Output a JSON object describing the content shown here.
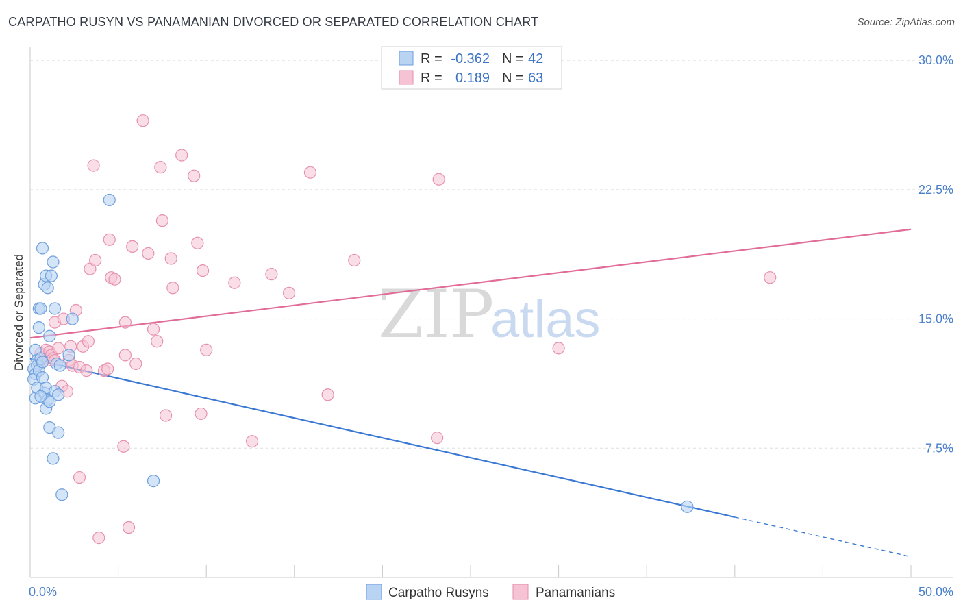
{
  "title": "CARPATHO RUSYN VS PANAMANIAN DIVORCED OR SEPARATED CORRELATION CHART",
  "source": "Source: ZipAtlas.com",
  "watermark": {
    "zip": "ZIP",
    "atlas": "atlas"
  },
  "colors": {
    "blue": "#3a78d4",
    "blue_fill": "#b9d3f3",
    "pink": "#e06c97",
    "pink_fill": "#f6c3d4",
    "tick_text": "#4a7fc9",
    "grid": "#dddddd"
  },
  "legend": {
    "rows": [
      {
        "r_label": "R =",
        "r_value": "-0.362",
        "n_label": "N =",
        "n_value": "42"
      },
      {
        "r_label": "R =",
        "r_value": "0.189",
        "n_label": "N =",
        "n_value": "63"
      }
    ]
  },
  "bottom_legend": [
    "Carpatho Rusyns",
    "Panamanians"
  ],
  "chart_data": {
    "type": "scatter",
    "title": "CARPATHO RUSYN VS PANAMANIAN DIVORCED OR SEPARATED CORRELATION CHART",
    "xlabel": "",
    "ylabel": "Divorced or Separated",
    "xlim": [
      0,
      50
    ],
    "ylim": [
      0,
      30.8
    ],
    "x_tick_labels": [
      "0.0%",
      "50.0%"
    ],
    "y_ticks": [
      7.5,
      15.0,
      22.5,
      30.0
    ],
    "y_tick_labels": [
      "7.5%",
      "15.0%",
      "22.5%",
      "30.0%"
    ],
    "grid": true,
    "legend_position": "top-center",
    "series": [
      {
        "name": "Carpatho Rusyns",
        "color": "#3a78d4",
        "r": -0.362,
        "n": 42,
        "trend": {
          "x_solid": [
            0,
            40
          ],
          "y_solid": [
            12.7,
            3.5
          ],
          "x_dashed": [
            40,
            50
          ],
          "y_dashed": [
            3.5,
            1.2
          ]
        },
        "points": [
          [
            0.2,
            12.1
          ],
          [
            0.3,
            11.8
          ],
          [
            0.2,
            11.5
          ],
          [
            0.3,
            10.4
          ],
          [
            0.3,
            13.2
          ],
          [
            0.4,
            12.6
          ],
          [
            0.4,
            12.3
          ],
          [
            0.5,
            12.0
          ],
          [
            0.4,
            11.0
          ],
          [
            0.5,
            14.5
          ],
          [
            0.5,
            15.6
          ],
          [
            0.6,
            15.6
          ],
          [
            0.6,
            12.7
          ],
          [
            0.7,
            12.5
          ],
          [
            0.7,
            11.6
          ],
          [
            0.7,
            19.1
          ],
          [
            0.8,
            17.0
          ],
          [
            0.9,
            17.5
          ],
          [
            0.8,
            10.7
          ],
          [
            0.9,
            9.8
          ],
          [
            0.9,
            11.0
          ],
          [
            1.0,
            16.8
          ],
          [
            1.0,
            10.3
          ],
          [
            1.1,
            10.2
          ],
          [
            1.1,
            14.0
          ],
          [
            1.1,
            8.7
          ],
          [
            1.2,
            17.5
          ],
          [
            1.3,
            6.9
          ],
          [
            1.3,
            18.3
          ],
          [
            1.4,
            15.6
          ],
          [
            1.4,
            10.8
          ],
          [
            1.5,
            12.4
          ],
          [
            1.6,
            8.4
          ],
          [
            1.6,
            10.6
          ],
          [
            1.8,
            4.8
          ],
          [
            1.7,
            12.3
          ],
          [
            2.4,
            15.0
          ],
          [
            2.2,
            12.9
          ],
          [
            4.5,
            21.9
          ],
          [
            7.0,
            5.6
          ],
          [
            37.3,
            4.1
          ],
          [
            0.6,
            10.5
          ]
        ]
      },
      {
        "name": "Panamanians",
        "color": "#e06c97",
        "r": 0.189,
        "n": 63,
        "trend": {
          "x_solid": [
            0,
            50
          ],
          "y_solid": [
            13.9,
            20.2
          ]
        },
        "points": [
          [
            0.6,
            13.0
          ],
          [
            0.8,
            12.8
          ],
          [
            0.9,
            13.2
          ],
          [
            1.0,
            12.6
          ],
          [
            1.1,
            13.1
          ],
          [
            1.2,
            12.9
          ],
          [
            1.3,
            12.7
          ],
          [
            1.4,
            12.6
          ],
          [
            1.4,
            14.8
          ],
          [
            1.6,
            13.3
          ],
          [
            1.8,
            11.1
          ],
          [
            1.9,
            15.0
          ],
          [
            2.1,
            10.8
          ],
          [
            2.2,
            12.6
          ],
          [
            2.3,
            13.4
          ],
          [
            2.4,
            12.3
          ],
          [
            2.6,
            15.5
          ],
          [
            2.8,
            12.2
          ],
          [
            2.8,
            5.8
          ],
          [
            3.0,
            13.4
          ],
          [
            3.2,
            12.0
          ],
          [
            3.3,
            13.7
          ],
          [
            3.4,
            17.9
          ],
          [
            3.6,
            23.9
          ],
          [
            3.7,
            18.4
          ],
          [
            3.9,
            2.3
          ],
          [
            4.2,
            12.0
          ],
          [
            4.4,
            12.1
          ],
          [
            4.5,
            19.6
          ],
          [
            4.6,
            17.4
          ],
          [
            4.8,
            17.3
          ],
          [
            5.3,
            7.6
          ],
          [
            5.4,
            14.8
          ],
          [
            5.4,
            12.9
          ],
          [
            5.6,
            2.9
          ],
          [
            5.8,
            19.2
          ],
          [
            6.0,
            12.4
          ],
          [
            6.4,
            26.5
          ],
          [
            6.7,
            18.8
          ],
          [
            7.0,
            14.4
          ],
          [
            7.2,
            13.7
          ],
          [
            7.4,
            23.8
          ],
          [
            7.5,
            20.7
          ],
          [
            7.7,
            9.4
          ],
          [
            8.0,
            18.5
          ],
          [
            8.1,
            16.8
          ],
          [
            8.6,
            24.5
          ],
          [
            9.3,
            23.3
          ],
          [
            9.5,
            19.4
          ],
          [
            9.7,
            9.5
          ],
          [
            9.8,
            17.8
          ],
          [
            10.0,
            13.2
          ],
          [
            11.6,
            17.1
          ],
          [
            12.6,
            7.9
          ],
          [
            13.7,
            17.6
          ],
          [
            14.7,
            16.5
          ],
          [
            15.9,
            23.5
          ],
          [
            16.9,
            10.6
          ],
          [
            18.4,
            18.4
          ],
          [
            23.2,
            23.1
          ],
          [
            23.1,
            8.1
          ],
          [
            30.0,
            13.3
          ],
          [
            42.0,
            17.4
          ]
        ]
      }
    ]
  }
}
